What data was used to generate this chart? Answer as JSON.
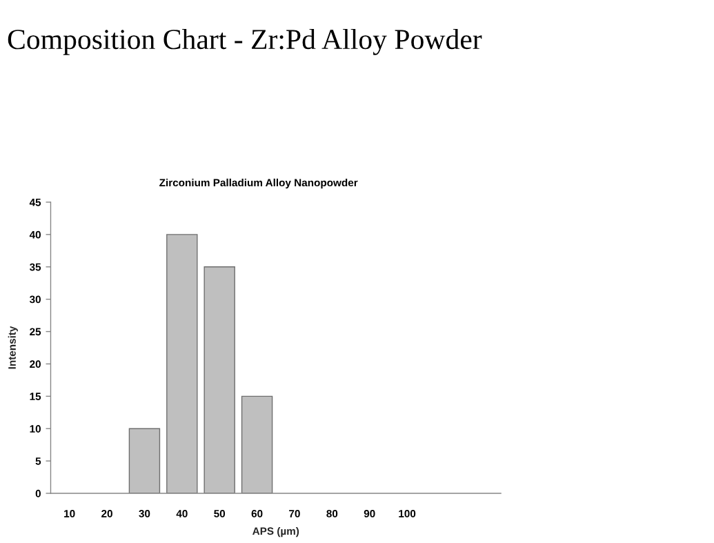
{
  "chart_data": {
    "type": "bar",
    "title": "Composition Chart - Zr:Pd Alloy Powder",
    "subtitle": "Zirconium Palladium Alloy Nanopowder",
    "xlabel": "APS (µm)",
    "ylabel": "Intensity",
    "categories": [
      "10",
      "20",
      "30",
      "40",
      "50",
      "60",
      "70",
      "80",
      "90",
      "100",
      null,
      null
    ],
    "values": [
      0,
      0,
      10,
      40,
      35,
      15,
      0,
      0,
      0,
      0,
      null,
      null
    ],
    "color": "#bfbfbf",
    "ylim": [
      0,
      45
    ],
    "yticks": [
      0,
      5,
      10,
      15,
      20,
      25,
      30,
      35,
      40,
      45
    ],
    "grid": false
  }
}
